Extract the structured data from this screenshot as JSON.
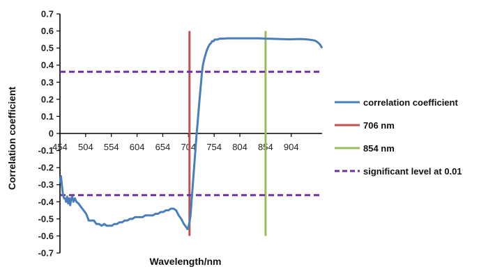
{
  "chart_data": {
    "type": "line",
    "xlabel": "Wavelength/nm",
    "ylabel": "Correlation coefficient",
    "xlim": [
      454,
      964
    ],
    "ylim": [
      -0.7,
      0.7
    ],
    "x_ticks": [
      454,
      504,
      554,
      604,
      654,
      704,
      754,
      804,
      854,
      904
    ],
    "x_tick_labels": [
      "454",
      "504",
      "554",
      "604",
      "654",
      "704",
      "754",
      "804",
      "854",
      "904"
    ],
    "y_ticks": [
      -0.7,
      -0.6,
      -0.5,
      -0.4,
      -0.3,
      -0.2,
      -0.1,
      0,
      0.1,
      0.2,
      0.3,
      0.4,
      0.5,
      0.6,
      0.7
    ],
    "y_tick_labels": [
      "-0.7",
      "-0.6",
      "-0.5",
      "-0.4",
      "-0.3",
      "-0.2",
      "-0.1",
      "0",
      "0.1",
      "0.2",
      "0.3",
      "0.4",
      "0.5",
      "0.6",
      "0.7"
    ],
    "grid": false,
    "legend_position": "right",
    "series": [
      {
        "name": "correlation coefficient",
        "kind": "line",
        "color": "#4a7ebb",
        "x": [
          454,
          456,
          458,
          460,
          462,
          464,
          466,
          468,
          470,
          472,
          474,
          476,
          478,
          480,
          483,
          486,
          490,
          495,
          500,
          505,
          510,
          515,
          520,
          525,
          530,
          535,
          540,
          545,
          550,
          555,
          560,
          565,
          570,
          575,
          580,
          585,
          590,
          595,
          600,
          605,
          610,
          615,
          620,
          625,
          630,
          635,
          640,
          645,
          650,
          655,
          660,
          665,
          670,
          675,
          680,
          685,
          690,
          695,
          700,
          702,
          704,
          706,
          708,
          710,
          712,
          715,
          718,
          720,
          722,
          725,
          728,
          730,
          732,
          735,
          738,
          740,
          743,
          745,
          748,
          750,
          753,
          755,
          758,
          760,
          765,
          770,
          775,
          780,
          785,
          790,
          800,
          810,
          820,
          830,
          840,
          850,
          854,
          860,
          870,
          880,
          890,
          900,
          910,
          920,
          930,
          940,
          950,
          955,
          960,
          964
        ],
        "values": [
          -0.29,
          -0.25,
          -0.31,
          -0.36,
          -0.38,
          -0.38,
          -0.4,
          -0.37,
          -0.41,
          -0.38,
          -0.42,
          -0.38,
          -0.37,
          -0.4,
          -0.38,
          -0.4,
          -0.41,
          -0.43,
          -0.45,
          -0.47,
          -0.51,
          -0.51,
          -0.51,
          -0.53,
          -0.53,
          -0.54,
          -0.53,
          -0.54,
          -0.54,
          -0.54,
          -0.53,
          -0.53,
          -0.52,
          -0.52,
          -0.51,
          -0.51,
          -0.5,
          -0.5,
          -0.49,
          -0.49,
          -0.49,
          -0.49,
          -0.48,
          -0.48,
          -0.48,
          -0.48,
          -0.47,
          -0.47,
          -0.46,
          -0.46,
          -0.45,
          -0.45,
          -0.44,
          -0.44,
          -0.45,
          -0.48,
          -0.5,
          -0.53,
          -0.55,
          -0.56,
          -0.55,
          -0.52,
          -0.48,
          -0.4,
          -0.32,
          -0.2,
          -0.08,
          0.0,
          0.07,
          0.18,
          0.28,
          0.35,
          0.4,
          0.44,
          0.47,
          0.49,
          0.51,
          0.52,
          0.53,
          0.54,
          0.54,
          0.55,
          0.55,
          0.55,
          0.555,
          0.555,
          0.556,
          0.557,
          0.557,
          0.557,
          0.557,
          0.557,
          0.557,
          0.557,
          0.557,
          0.556,
          0.555,
          0.555,
          0.554,
          0.553,
          0.552,
          0.551,
          0.552,
          0.553,
          0.552,
          0.549,
          0.544,
          0.535,
          0.52,
          0.5
        ]
      },
      {
        "name": "706 nm",
        "kind": "vline",
        "color": "#c0504d",
        "x": 706,
        "y_range": [
          -0.6,
          0.6
        ]
      },
      {
        "name": "854 nm",
        "kind": "vline",
        "color": "#9bbb59",
        "x": 854,
        "y_range": [
          -0.6,
          0.6
        ]
      },
      {
        "name": "significant level at 0.01",
        "kind": "hline-dashed",
        "color": "#7030a0",
        "y_values": [
          0.361,
          -0.361
        ]
      }
    ]
  }
}
